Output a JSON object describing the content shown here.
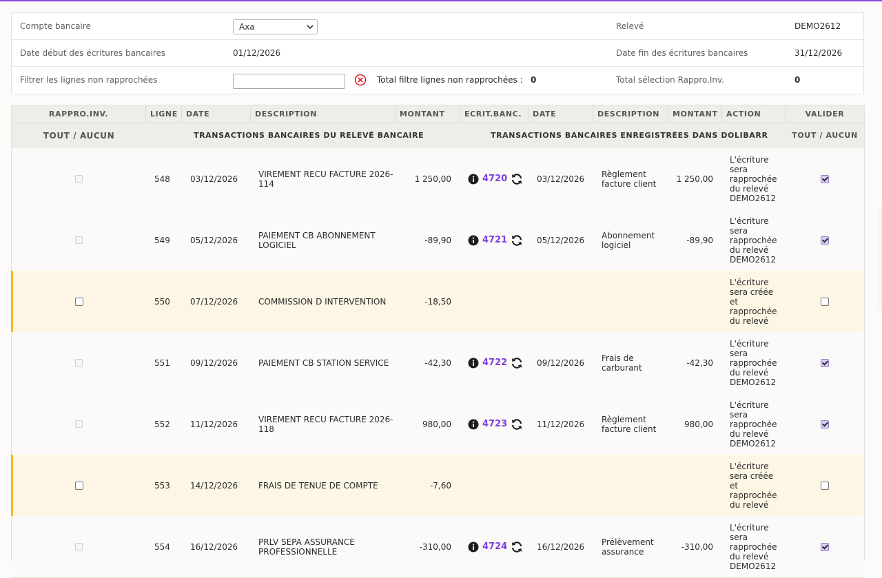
{
  "colors": {
    "accent": "#8a46e0",
    "link": "#7d3fe0",
    "pending_bar": "#f1b82b",
    "pending_bg": "#fef6e4",
    "error": "#e0202a"
  },
  "filters": {
    "account_label": "Compte bancaire",
    "account_value": "Axa",
    "statement_label": "Relevé",
    "statement_value": "DEMO2612",
    "date_start_label": "Date début des écritures bancaires",
    "date_start_value": "01/12/2026",
    "date_end_label": "Date fin des écritures bancaires",
    "date_end_value": "31/12/2026",
    "filter_label": "Filtrer les lignes non rapprochées",
    "filter_value": "",
    "total_filter_label": "Total filtre lignes non rapprochées :",
    "total_filter_value": "0",
    "total_selection_label": "Total sélection Rappro.Inv.",
    "total_selection_value": "0"
  },
  "table": {
    "headers": {
      "rappro": "RAPPRO.INV.",
      "ligne": "LIGNE",
      "date": "DATE",
      "description": "DESCRIPTION",
      "montant": "MONTANT",
      "ecrit": "ECRIT.BANC.",
      "date2": "DATE",
      "description2": "DESCRIPTION",
      "montant2": "MONTANT",
      "action": "ACTION",
      "valider": "VALIDER"
    },
    "subheaders": {
      "tout": "TOUT",
      "sep": "/",
      "aucun": "AUCUN",
      "left_section": "TRANSACTIONS BANCAIRES DU RELEVÉ BANCAIRE",
      "right_section": "TRANSACTIONS BANCAIRES ENREGISTRÉES DANS DOLIBARR",
      "tout2": "TOUT",
      "sep2": "/",
      "aucun2": "AUCUN"
    },
    "rows": [
      {
        "ligne": "548",
        "date": "03/12/2026",
        "description": "VIREMENT RECU FACTURE 2026-114",
        "montant": "1 250,00",
        "ecrit": "4720",
        "date2": "03/12/2026",
        "description2": "Règlement facture client",
        "montant2": "1 250,00",
        "action": "L'écriture sera rapprochée du relevé DEMO2612",
        "matched": true,
        "valider": true
      },
      {
        "ligne": "549",
        "date": "05/12/2026",
        "description": "PAIEMENT CB ABONNEMENT LOGICIEL",
        "montant": "-89,90",
        "ecrit": "4721",
        "date2": "05/12/2026",
        "description2": "Abonnement logiciel",
        "montant2": "-89,90",
        "action": "L'écriture sera rapprochée du relevé DEMO2612",
        "matched": true,
        "valider": true
      },
      {
        "ligne": "550",
        "date": "07/12/2026",
        "description": "COMMISSION D INTERVENTION",
        "montant": "-18,50",
        "ecrit": "",
        "date2": "",
        "description2": "",
        "montant2": "",
        "action": "L'écriture sera créée et rapprochée du relevé",
        "matched": false,
        "valider": false
      },
      {
        "ligne": "551",
        "date": "09/12/2026",
        "description": "PAIEMENT CB STATION SERVICE",
        "montant": "-42,30",
        "ecrit": "4722",
        "date2": "09/12/2026",
        "description2": "Frais de carburant",
        "montant2": "-42,30",
        "action": "L'écriture sera rapprochée du relevé DEMO2612",
        "matched": true,
        "valider": true
      },
      {
        "ligne": "552",
        "date": "11/12/2026",
        "description": "VIREMENT RECU FACTURE 2026-118",
        "montant": "980,00",
        "ecrit": "4723",
        "date2": "11/12/2026",
        "description2": "Règlement facture client",
        "montant2": "980,00",
        "action": "L'écriture sera rapprochée du relevé DEMO2612",
        "matched": true,
        "valider": true
      },
      {
        "ligne": "553",
        "date": "14/12/2026",
        "description": "FRAIS DE TENUE DE COMPTE",
        "montant": "-7,60",
        "ecrit": "",
        "date2": "",
        "description2": "",
        "montant2": "",
        "action": "L'écriture sera créée et rapprochée du relevé",
        "matched": false,
        "valider": false
      },
      {
        "ligne": "554",
        "date": "16/12/2026",
        "description": "PRLV SEPA ASSURANCE PROFESSIONNELLE",
        "montant": "-310,00",
        "ecrit": "4724",
        "date2": "16/12/2026",
        "description2": "Prélèvement assurance",
        "montant2": "-310,00",
        "action": "L'écriture sera rapprochée du relevé DEMO2612",
        "matched": true,
        "valider": true
      }
    ]
  },
  "icons": {
    "clear": "circle-x-icon",
    "info": "info-icon",
    "sync": "sync-icon",
    "chevron": "chevron-down-icon"
  }
}
